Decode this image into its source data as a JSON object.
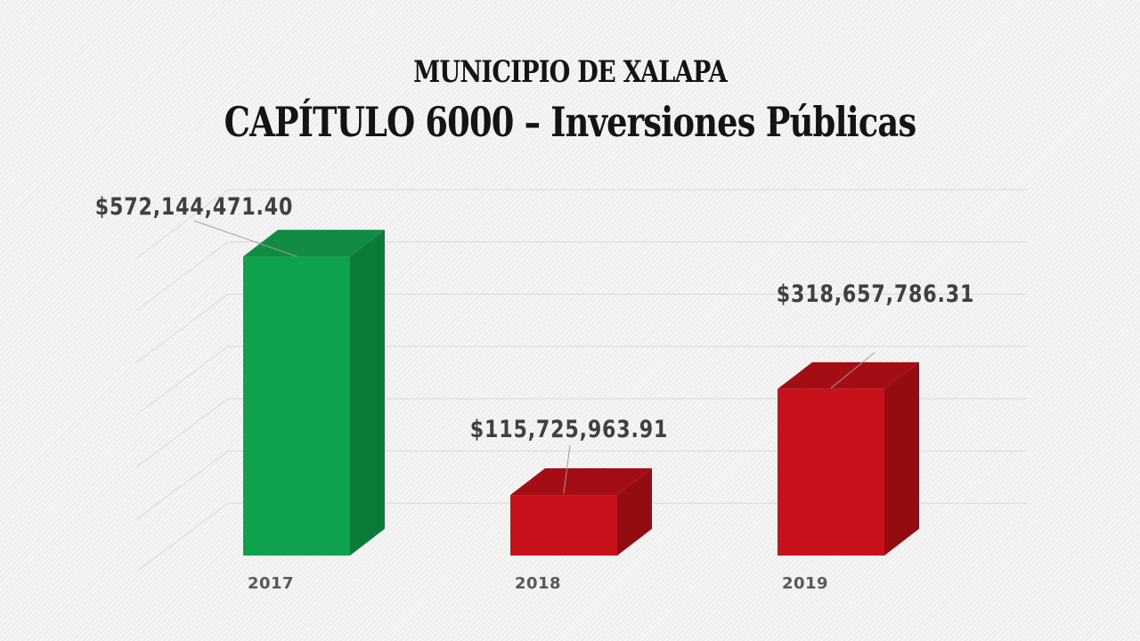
{
  "slide": {
    "title_top": "MUNICIPIO DE XALAPA",
    "title_main": "CAPÍTULO 6000 – Inversiones Públicas"
  },
  "colors": {
    "background": "#f2f2f3",
    "title_text": "#141414",
    "data_label_text": "#404040",
    "axis_label_text": "#58595b",
    "gridline": "#d9d9da",
    "leader_line": "#9e9e9e",
    "bars": {
      "green": {
        "front": "#0ea24c",
        "top": "#128c45",
        "side": "#0b7b3a"
      },
      "red": {
        "front": "#c9111b",
        "top": "#a30d13",
        "side": "#930c10"
      }
    }
  },
  "chart_data": {
    "type": "bar",
    "style": "3d-column",
    "title": "CAPÍTULO 6000 – Inversiones Públicas",
    "subtitle": "MUNICIPIO DE XALAPA",
    "categories": [
      "2017",
      "2018",
      "2019"
    ],
    "series": [
      {
        "name": "Inversiones Públicas",
        "values": [
          572144471.4,
          115725963.91,
          318657786.31
        ]
      }
    ],
    "value_labels": [
      "$572,144,471.40",
      "$115,725,963.91",
      "$318,657,786.31"
    ],
    "bar_colors": [
      "green",
      "red",
      "red"
    ],
    "xlabel": "",
    "ylabel": "",
    "ylim": [
      0,
      700000000
    ],
    "gridline_step": 100000000,
    "grid": true,
    "gridline_count": 7,
    "legend": false
  }
}
